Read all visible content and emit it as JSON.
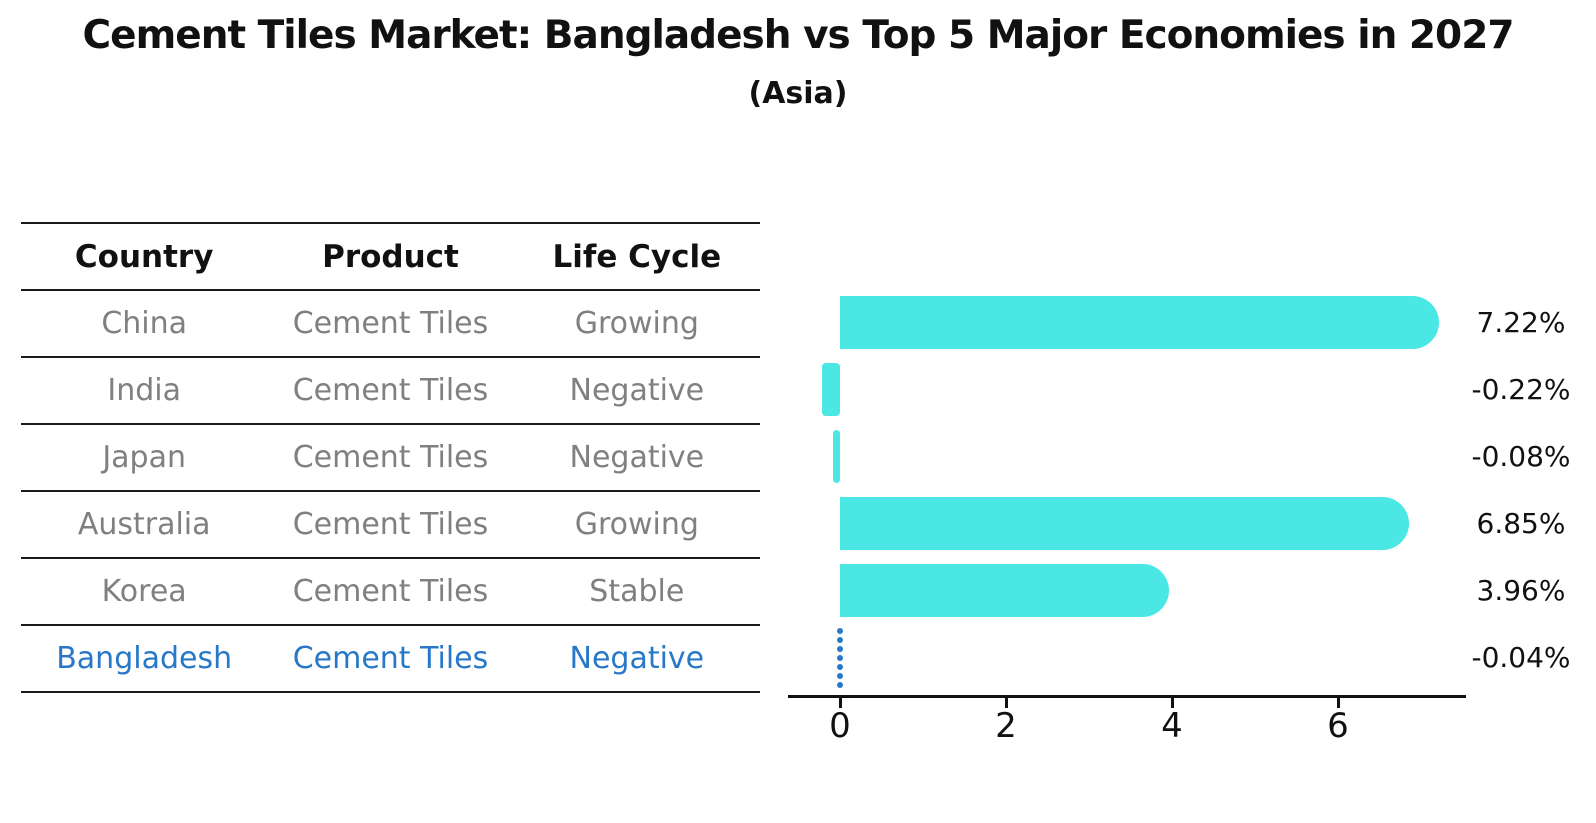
{
  "title": "Cement Tiles Market: Bangladesh vs Top 5 Major Economies in 2027",
  "subtitle": "(Asia)",
  "table": {
    "headers": [
      "Country",
      "Product",
      "Life Cycle"
    ],
    "rows": [
      {
        "country": "China",
        "product": "Cement Tiles",
        "life_cycle": "Growing",
        "highlight": false
      },
      {
        "country": "India",
        "product": "Cement Tiles",
        "life_cycle": "Negative",
        "highlight": false
      },
      {
        "country": "Japan",
        "product": "Cement Tiles",
        "life_cycle": "Negative",
        "highlight": false
      },
      {
        "country": "Australia",
        "product": "Cement Tiles",
        "life_cycle": "Growing",
        "highlight": false
      },
      {
        "country": "Korea",
        "product": "Cement Tiles",
        "life_cycle": "Stable",
        "highlight": false
      },
      {
        "country": "Bangladesh",
        "product": "Cement Tiles",
        "life_cycle": "Negative",
        "highlight": true
      }
    ]
  },
  "chart_data": {
    "type": "bar",
    "orientation": "horizontal",
    "categories": [
      "China",
      "India",
      "Japan",
      "Australia",
      "Korea",
      "Bangladesh"
    ],
    "values": [
      7.22,
      -0.22,
      -0.08,
      6.85,
      3.96,
      -0.04
    ],
    "value_labels": [
      "7.22%",
      "-0.22%",
      "-0.08%",
      "6.85%",
      "3.96%",
      "-0.04%"
    ],
    "marker_styles": [
      "bar",
      "bar",
      "bar",
      "bar",
      "bar",
      "dotted-line"
    ],
    "xtick_labels": [
      "0",
      "2",
      "4",
      "6"
    ],
    "xtick_values": [
      0,
      2,
      4,
      6
    ],
    "xlim": [
      -0.63,
      7.54
    ],
    "grid": false,
    "legend": null,
    "bar_color": "#4ae7e5",
    "highlight_color": "#2878c8",
    "axis_color": "#111111",
    "label_color": "#111111",
    "table_text_color": "#808080"
  }
}
